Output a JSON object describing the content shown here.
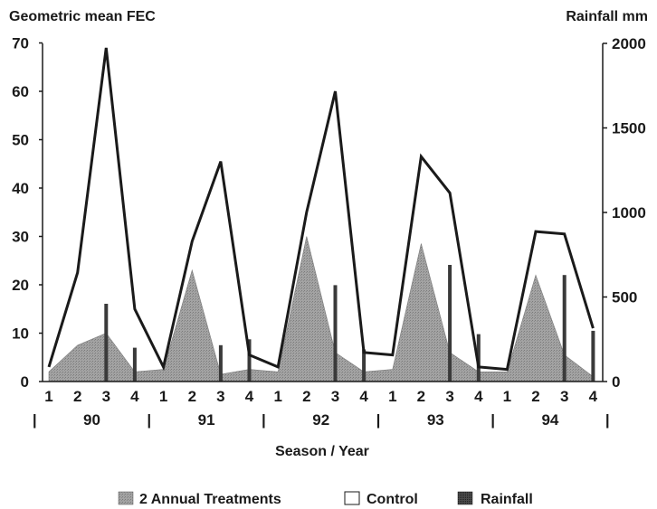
{
  "chart_data": {
    "type": "line",
    "title_left": "Geometric mean FEC",
    "title_right": "Rainfall mm",
    "xlabel": "Season / Year",
    "ylim_left": [
      0,
      70
    ],
    "yticks_left": [
      0,
      10,
      20,
      30,
      40,
      50,
      60,
      70
    ],
    "ylim_right": [
      0,
      2000
    ],
    "yticks_right": [
      0,
      500,
      1000,
      1500,
      2000
    ],
    "season_labels": [
      "1",
      "2",
      "3",
      "4",
      "1",
      "2",
      "3",
      "4",
      "1",
      "2",
      "3",
      "4",
      "1",
      "2",
      "3",
      "4",
      "1",
      "2",
      "3",
      "4"
    ],
    "years": [
      "90",
      "91",
      "92",
      "93",
      "94"
    ],
    "year_separator": "|",
    "series": [
      {
        "name": "2 Annual Treatments",
        "kind": "area",
        "axis": "left",
        "color": "#9a9a9a",
        "values": [
          2,
          7.5,
          10,
          2,
          2.5,
          23,
          1.5,
          2.5,
          2,
          30,
          6,
          2,
          2.5,
          28.5,
          6,
          2,
          2,
          22,
          5.5,
          1
        ]
      },
      {
        "name": "Control",
        "kind": "line",
        "axis": "left",
        "color": "#1a1a1a",
        "values": [
          3,
          22.5,
          69,
          15,
          3,
          29,
          45.5,
          5.5,
          3,
          35,
          60,
          6,
          5.5,
          46.5,
          39,
          3,
          2.5,
          31,
          30.5,
          11
        ]
      },
      {
        "name": "Rainfall",
        "kind": "bar",
        "axis": "right",
        "color": "#3a3a3a",
        "values": [
          0,
          0,
          460,
          200,
          0,
          0,
          215,
          250,
          0,
          0,
          570,
          190,
          0,
          0,
          690,
          280,
          0,
          0,
          630,
          300
        ]
      }
    ],
    "legend_position": "bottom"
  }
}
